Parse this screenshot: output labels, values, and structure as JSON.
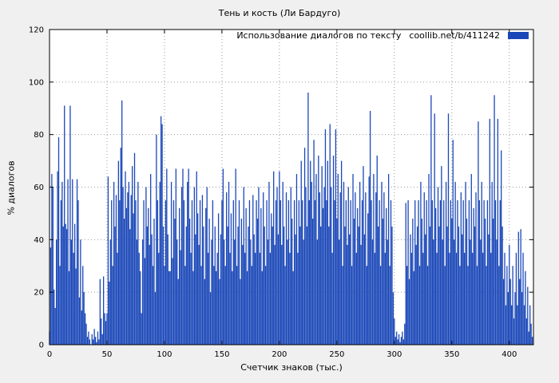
{
  "colors": {
    "background": "#f0f0f0",
    "plot_background": "#ffffff",
    "bar": "#1a47b8",
    "grid": "#9a9a9a",
    "border": "#000000"
  },
  "chart_data": {
    "type": "bar",
    "title": "Тень и кость (Ли Бардуго)",
    "legend_label": "Использование диалогов по тексту",
    "legend_url": "coollib.net/b/411242",
    "xlabel": "Счетчик знаков (тыс.)",
    "ylabel": "% диалогов",
    "xlim": [
      0,
      421
    ],
    "ylim": [
      0,
      120
    ],
    "xticks": [
      0,
      50,
      100,
      150,
      200,
      250,
      300,
      350,
      400
    ],
    "yticks": [
      0,
      20,
      40,
      60,
      80,
      100,
      120
    ],
    "grid": true,
    "x_start": 0,
    "x_step": 1,
    "values": [
      5,
      37,
      65,
      60,
      21,
      14,
      40,
      66,
      79,
      30,
      55,
      62,
      45,
      91,
      46,
      44,
      63,
      28,
      91,
      40,
      63,
      35,
      46,
      29,
      63,
      55,
      18,
      40,
      13,
      30,
      20,
      12,
      8,
      3,
      5,
      2,
      0,
      4,
      2,
      6,
      3,
      1,
      5,
      2,
      25,
      10,
      4,
      26,
      12,
      9,
      12,
      64,
      24,
      40,
      55,
      30,
      62,
      45,
      57,
      35,
      70,
      55,
      75,
      93,
      60,
      48,
      66,
      52,
      58,
      62,
      44,
      57,
      68,
      50,
      73,
      55,
      40,
      62,
      35,
      28,
      12,
      40,
      55,
      33,
      60,
      45,
      52,
      38,
      65,
      42,
      30,
      48,
      20,
      80,
      55,
      35,
      62,
      87,
      84,
      45,
      30,
      55,
      67,
      42,
      28,
      28,
      62,
      33,
      55,
      48,
      67,
      40,
      25,
      52,
      36,
      60,
      67,
      55,
      30,
      45,
      62,
      67,
      48,
      35,
      55,
      28,
      60,
      42,
      66,
      50,
      38,
      55,
      30,
      57,
      45,
      25,
      52,
      60,
      35,
      48,
      20,
      40,
      55,
      30,
      45,
      28,
      35,
      50,
      25,
      42,
      55,
      67,
      40,
      30,
      58,
      45,
      62,
      35,
      50,
      28,
      55,
      40,
      67,
      30,
      45,
      55,
      25,
      48,
      38,
      60,
      35,
      52,
      28,
      45,
      55,
      40,
      30,
      57,
      42,
      35,
      55,
      48,
      60,
      35,
      52,
      28,
      58,
      45,
      30,
      55,
      40,
      62,
      35,
      50,
      45,
      66,
      38,
      55,
      60,
      42,
      66,
      55,
      38,
      62,
      45,
      30,
      58,
      40,
      55,
      35,
      60,
      48,
      28,
      55,
      42,
      65,
      35,
      55,
      45,
      70,
      55,
      40,
      75,
      60,
      45,
      96,
      55,
      70,
      62,
      48,
      78,
      55,
      65,
      40,
      72,
      58,
      45,
      68,
      52,
      60,
      82,
      55,
      70,
      45,
      84,
      60,
      35,
      72,
      55,
      82,
      48,
      65,
      40,
      58,
      70,
      30,
      62,
      45,
      55,
      38,
      60,
      42,
      55,
      30,
      65,
      48,
      58,
      35,
      52,
      45,
      62,
      38,
      55,
      68,
      42,
      58,
      30,
      50,
      64,
      89,
      55,
      40,
      65,
      35,
      58,
      72,
      45,
      55,
      30,
      62,
      48,
      58,
      35,
      52,
      40,
      65,
      30,
      55,
      45,
      20,
      10,
      3,
      5,
      2,
      4,
      1,
      3,
      5,
      2,
      8,
      54,
      30,
      55,
      25,
      42,
      35,
      48,
      28,
      55,
      38,
      45,
      55,
      30,
      62,
      48,
      35,
      58,
      42,
      55,
      30,
      65,
      45,
      95,
      55,
      40,
      88,
      52,
      35,
      60,
      45,
      55,
      68,
      40,
      55,
      30,
      62,
      45,
      88,
      35,
      55,
      48,
      78,
      40,
      62,
      35,
      55,
      45,
      30,
      58,
      42,
      55,
      35,
      62,
      48,
      30,
      55,
      40,
      65,
      35,
      52,
      45,
      58,
      30,
      85,
      55,
      40,
      62,
      35,
      55,
      48,
      30,
      55,
      42,
      86,
      35,
      62,
      48,
      95,
      55,
      40,
      86,
      30,
      55,
      74,
      45,
      25,
      35,
      15,
      30,
      20,
      38,
      25,
      15,
      30,
      10,
      20,
      35,
      15,
      43,
      25,
      44,
      20,
      35,
      15,
      28,
      10,
      22,
      5,
      15,
      8,
      3
    ]
  }
}
